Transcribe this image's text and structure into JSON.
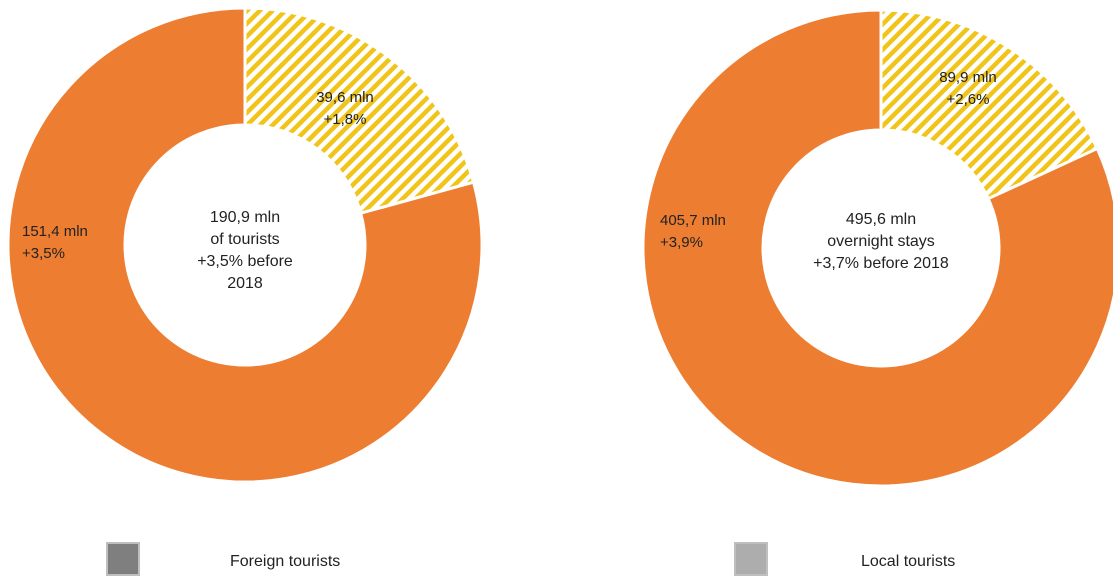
{
  "chart_data": [
    {
      "type": "pie",
      "style": "donut",
      "center_text": [
        "190,9 mln",
        "of tourists",
        "+3,5% before",
        "2018"
      ],
      "slices": [
        {
          "series": "Local tourists",
          "value": 39.6,
          "label": [
            "39,6 mln",
            "+1,8%"
          ],
          "color": "#F0C418",
          "pattern": "hatched"
        },
        {
          "series": "Foreign tourists",
          "value": 151.4,
          "label": [
            "151,4 mln",
            "+3,5%"
          ],
          "color": "#ED7D31",
          "pattern": "solid"
        }
      ]
    },
    {
      "type": "pie",
      "style": "donut",
      "center_text": [
        "495,6 mln",
        "overnight stays",
        "+3,7% before 2018"
      ],
      "slices": [
        {
          "series": "Local tourists",
          "value": 89.9,
          "label": [
            "89,9 mln",
            "+2,6%"
          ],
          "color": "#F0C418",
          "pattern": "hatched"
        },
        {
          "series": "Foreign tourists",
          "value": 405.7,
          "label": [
            "405,7 mln",
            "+3,9%"
          ],
          "color": "#ED7D31",
          "pattern": "solid"
        }
      ]
    }
  ],
  "legend": [
    {
      "name": "Foreign tourists",
      "swatch_color": "#7F7F7F"
    },
    {
      "name": "Local tourists",
      "swatch_color": "#ADADAD"
    }
  ]
}
